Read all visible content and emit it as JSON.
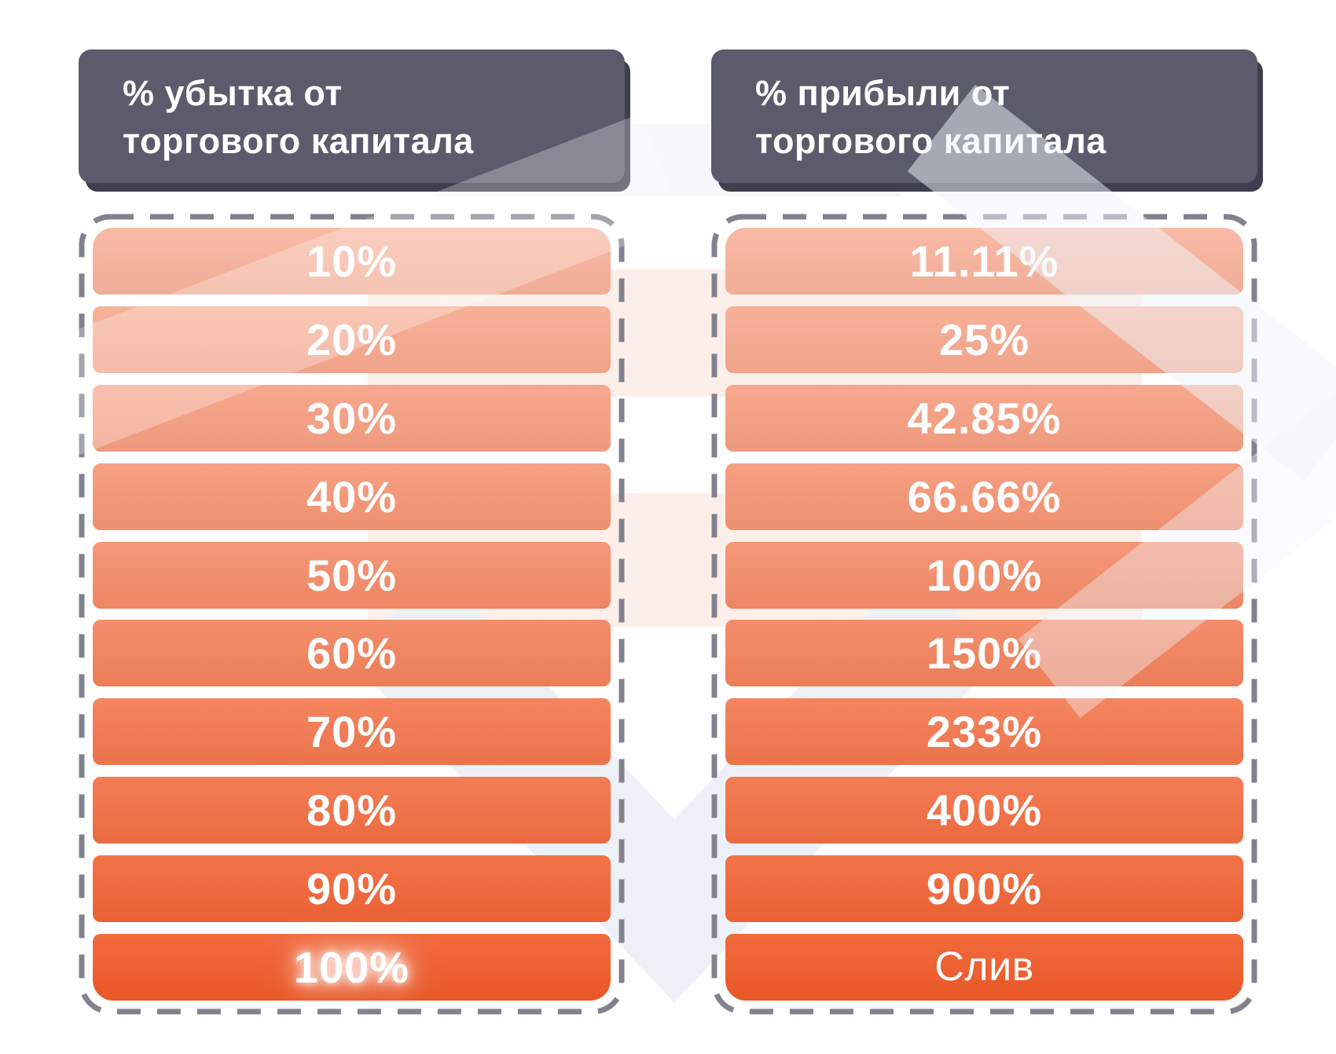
{
  "chart_data": {
    "type": "table",
    "columns": [
      "% убытка от торгового капитала",
      "% прибыли от торгового капитала"
    ],
    "rows": [
      [
        "10%",
        "11.11%"
      ],
      [
        "20%",
        "25%"
      ],
      [
        "30%",
        "42.85%"
      ],
      [
        "40%",
        "66.66%"
      ],
      [
        "50%",
        "100%"
      ],
      [
        "60%",
        "150%"
      ],
      [
        "70%",
        "233%"
      ],
      [
        "80%",
        "400%"
      ],
      [
        "90%",
        "900%"
      ],
      [
        "100%",
        "Слив"
      ]
    ],
    "legend_position": "none",
    "grid": false
  },
  "columns": [
    {
      "id": "loss",
      "header": {
        "line1": "% убытка от",
        "line2": "торгового капитала"
      },
      "rows": [
        {
          "label": "10%"
        },
        {
          "label": "20%"
        },
        {
          "label": "30%"
        },
        {
          "label": "40%"
        },
        {
          "label": "50%"
        },
        {
          "label": "60%"
        },
        {
          "label": "70%"
        },
        {
          "label": "80%"
        },
        {
          "label": "90%"
        },
        {
          "label": "100%",
          "glow": true
        }
      ]
    },
    {
      "id": "profit",
      "header": {
        "line1": "% прибыли от",
        "line2": "торгового капитала"
      },
      "rows": [
        {
          "label": "11.11%"
        },
        {
          "label": "25%"
        },
        {
          "label": "42.85%"
        },
        {
          "label": "66.66%"
        },
        {
          "label": "100%"
        },
        {
          "label": "150%"
        },
        {
          "label": "233%"
        },
        {
          "label": "400%"
        },
        {
          "label": "900%"
        },
        {
          "label": "Слив",
          "alt_font": true
        }
      ]
    }
  ],
  "style": {
    "page_bg": "#ffffff",
    "header_bg": "#5a5c6c",
    "header_shadow": "#3e3f4d",
    "header_text": "#ffffff",
    "dash_color": "#82828e",
    "row_text": "#ffffff",
    "row_colors": [
      "#f8b29b",
      "#f7a88e",
      "#f69e81",
      "#f59574",
      "#f48b68",
      "#f3815b",
      "#f3774e",
      "#f26e42",
      "#f16435",
      "#f05a28"
    ],
    "watermark_pink": "#fcefe9",
    "watermark_blue": "#edf1f7"
  }
}
